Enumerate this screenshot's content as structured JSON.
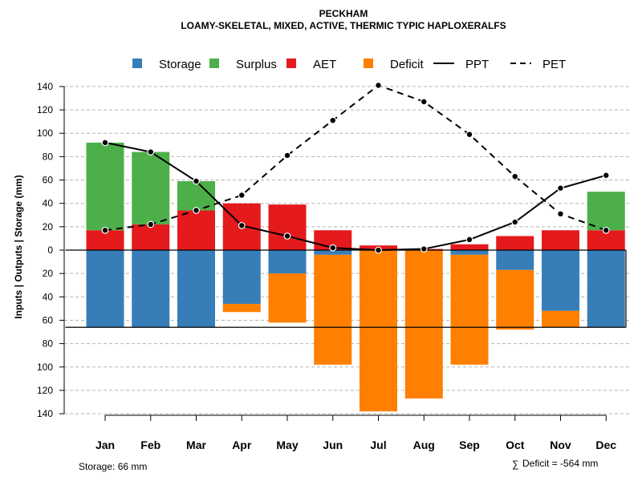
{
  "chart_data": {
    "type": "bar",
    "title": "PECKHAM",
    "subtitle": "LOAMY-SKELETAL, MIXED, ACTIVE, THERMIC TYPIC HAPLOXERALFS",
    "ylabel": "Inputs | Outputs | Storage    (mm)",
    "xlabel": "",
    "ylim": [
      -140,
      140
    ],
    "y_ticks": [
      140,
      120,
      100,
      80,
      60,
      40,
      20,
      0,
      -20,
      -40,
      -60,
      -80,
      -100,
      -120,
      -140
    ],
    "y_tick_labels": [
      "140",
      "120",
      "100",
      "80",
      "60",
      "40",
      "20",
      "0",
      "20",
      "40",
      "60",
      "80",
      "100",
      "120",
      "140"
    ],
    "grid": true,
    "categories": [
      "Jan",
      "Feb",
      "Mar",
      "Apr",
      "May",
      "Jun",
      "Jul",
      "Aug",
      "Sep",
      "Oct",
      "Nov",
      "Dec"
    ],
    "storage_capacity": 66,
    "legend": [
      {
        "label": "Storage",
        "kind": "box",
        "color": "#377EB8"
      },
      {
        "label": "Surplus",
        "kind": "box",
        "color": "#4DAF4A"
      },
      {
        "label": "AET",
        "kind": "box",
        "color": "#E41A1C"
      },
      {
        "label": "Deficit",
        "kind": "box",
        "color": "#FF7F00"
      },
      {
        "label": "PPT",
        "kind": "solid"
      },
      {
        "label": "PET",
        "kind": "dashed"
      }
    ],
    "series": [
      {
        "name": "AET",
        "color": "#E41A1C",
        "values": [
          17,
          22,
          34,
          40,
          39,
          17,
          4,
          1,
          5,
          12,
          17,
          17
        ]
      },
      {
        "name": "Surplus",
        "color": "#4DAF4A",
        "values": [
          75,
          62,
          25,
          0,
          0,
          0,
          0,
          0,
          0,
          0,
          0,
          33
        ]
      },
      {
        "name": "Storage",
        "color": "#377EB8",
        "values": [
          66,
          66,
          66,
          46,
          20,
          4,
          0,
          0,
          4,
          17,
          52,
          66
        ]
      },
      {
        "name": "Deficit",
        "color": "#FF7F00",
        "values": [
          0,
          0,
          0,
          7,
          42,
          94,
          138,
          127,
          94,
          51,
          14,
          0
        ]
      },
      {
        "name": "PPT",
        "style": "solid",
        "values": [
          92,
          84,
          59,
          21,
          12,
          2,
          0,
          1,
          9,
          24,
          53,
          64
        ]
      },
      {
        "name": "PET",
        "style": "dashed",
        "values": [
          17,
          22,
          34,
          47,
          81,
          111,
          141,
          127,
          99,
          63,
          31,
          17
        ]
      }
    ],
    "annotations": {
      "storage": "Storage: 66 mm",
      "deficit_symbol": "∑",
      "deficit": "Deficit = -564 mm"
    }
  }
}
